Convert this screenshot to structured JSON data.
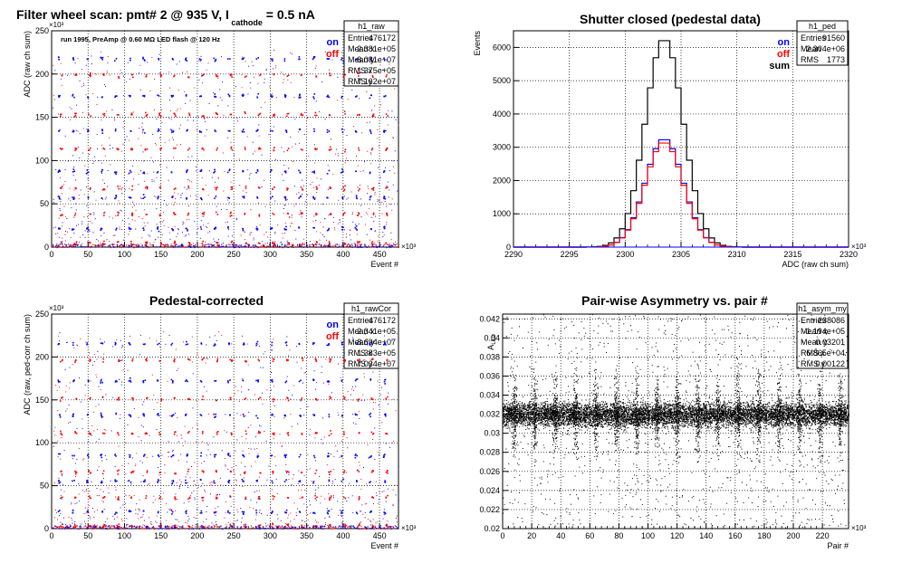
{
  "colors": {
    "on": "#0000ff",
    "off": "#ff0000",
    "sum": "#000000",
    "frame": "#000000",
    "grid": "#000000",
    "background": "#ffffff"
  },
  "chart_data": [
    {
      "id": "h1_raw",
      "type": "scatter",
      "title": "Filter wheel scan: pmt#   2 @   935 V, I",
      "title_sub": "cathode",
      "title_tail": "= 0.5 nA",
      "annotation": "run 1995, PreAmp @ 0.60 MΩ   LED flash @  120 Hz",
      "xlabel": "Event #",
      "ylabel": "ADC (raw ch sum)",
      "x_exponent": "×10³",
      "y_exponent": "×10³",
      "xlim": [
        0,
        476
      ],
      "ylim": [
        0,
        250
      ],
      "x_ticks": [
        "0",
        "50",
        "100",
        "150",
        "200",
        "250",
        "300",
        "350",
        "400",
        "450"
      ],
      "y_ticks": [
        "0",
        "50",
        "100",
        "150",
        "200",
        "250"
      ],
      "grid": true,
      "legend": [
        {
          "label": "on",
          "color": "#0000ff"
        },
        {
          "label": "off",
          "color": "#ff0000"
        }
      ],
      "level_groups": [
        218,
        205,
        175,
        160,
        135,
        120,
        88,
        75,
        58,
        45,
        22,
        12
      ],
      "stats": {
        "name": "h1_raw",
        "rows": [
          [
            "Entries",
            "476172"
          ],
          [
            "Mean x",
            "2.381e+05"
          ],
          [
            "Mean y",
            "8.081e+07"
          ],
          [
            "RMS x",
            "1.375e+05"
          ],
          [
            "RMS y",
            "7.162e+07"
          ]
        ]
      }
    },
    {
      "id": "h1_ped",
      "type": "line",
      "title": "Shutter closed (pedestal data)",
      "xlabel": "ADC (raw ch sum)",
      "ylabel": "Events",
      "x_exponent": "×10³",
      "xlim": [
        2290,
        2320
      ],
      "ylim": [
        0,
        6500
      ],
      "x_ticks": [
        "2290",
        "2295",
        "2300",
        "2305",
        "2310",
        "2315",
        "2320"
      ],
      "y_ticks": [
        "0",
        "1000",
        "2000",
        "3000",
        "4000",
        "5000",
        "6000"
      ],
      "grid": true,
      "legend": [
        {
          "label": "on",
          "color": "#0000ff"
        },
        {
          "label": "off",
          "color": "#ff0000"
        },
        {
          "label": "sum",
          "color": "#000000"
        }
      ],
      "series": [
        {
          "name": "sum",
          "color": "#000000",
          "peak": 6270,
          "mean": 2303.5,
          "sigma": 1.7
        },
        {
          "name": "on",
          "color": "#0000ff",
          "peak": 3260,
          "mean": 2303.5,
          "sigma": 1.7
        },
        {
          "name": "off",
          "color": "#ff0000",
          "peak": 3160,
          "mean": 2303.5,
          "sigma": 1.7
        }
      ],
      "stats": {
        "name": "h1_ped",
        "rows": [
          [
            "Entries",
            "91560"
          ],
          [
            "Mean",
            "2.304e+06"
          ],
          [
            "RMS",
            "1773"
          ]
        ]
      }
    },
    {
      "id": "h1_rawCor",
      "type": "scatter",
      "title": "Pedestal-corrected",
      "xlabel": "Event #",
      "ylabel": "ADC (raw, ped-corr ch sum)",
      "x_exponent": "×10³",
      "y_exponent": "×10³",
      "xlim": [
        0,
        476
      ],
      "ylim": [
        0,
        250
      ],
      "x_ticks": [
        "0",
        "50",
        "100",
        "150",
        "200",
        "250",
        "300",
        "350",
        "400",
        "450"
      ],
      "y_ticks": [
        "0",
        "50",
        "100",
        "150",
        "200",
        "250"
      ],
      "grid": true,
      "legend": [
        {
          "label": "on",
          "color": "#0000ff"
        },
        {
          "label": "off",
          "color": "#ff0000"
        }
      ],
      "level_groups": [
        216,
        203,
        173,
        158,
        133,
        118,
        86,
        73,
        56,
        43,
        20,
        10
      ],
      "stats": {
        "name": "h1_rawCor",
        "rows": [
          [
            "Entries",
            "476172"
          ],
          [
            "Mean x",
            "2.341e+05"
          ],
          [
            "Mean y",
            "8.694e+07"
          ],
          [
            "RMS x",
            "1.383e+05"
          ],
          [
            "RMS y",
            "7.034e+07"
          ]
        ]
      }
    },
    {
      "id": "h1_asym_my",
      "type": "scatter",
      "title": "Pair-wise Asymmetry vs. pair #",
      "xlabel": "Pair #",
      "ylabel": "A",
      "ylabel_sub": "LED",
      "x_exponent": "×10³",
      "xlim": [
        0,
        238
      ],
      "ylim": [
        0.02,
        0.0425
      ],
      "x_ticks": [
        "0",
        "20",
        "40",
        "60",
        "80",
        "100",
        "120",
        "140",
        "160",
        "180",
        "200",
        "220"
      ],
      "y_ticks": [
        "0.02",
        "0.022",
        "0.024",
        "0.026",
        "0.028",
        "0.03",
        "0.032",
        "0.034",
        "0.036",
        "0.038",
        "0.04",
        "0.042"
      ],
      "grid": true,
      "band_center": 0.032,
      "band_halfwidth": 0.0009,
      "spike_period": 14,
      "stats": {
        "name": "h1_asym_my",
        "rows": [
          [
            "Entries",
            "238086"
          ],
          [
            "Mean x",
            "1.194e+05"
          ],
          [
            "Mean y",
            "0.03201"
          ],
          [
            "RMS x",
            "6.865e+04"
          ],
          [
            "RMS y",
            "0.00122"
          ]
        ]
      }
    }
  ]
}
